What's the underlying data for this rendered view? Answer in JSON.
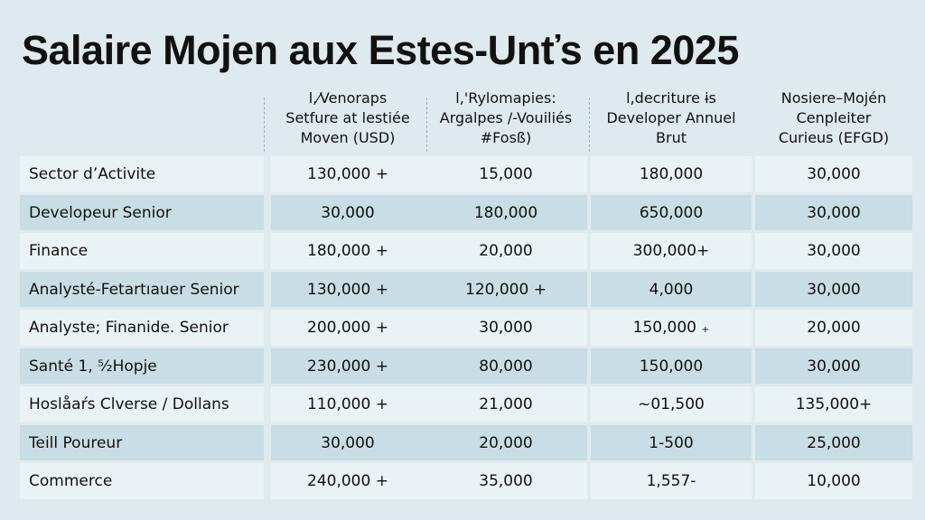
{
  "header": {
    "title": "Salaire Mojen aux Estes-Unťs en 2025"
  },
  "table": {
    "columns": [
      [
        "l,⁄Venoraps",
        "Setfure at lestiée",
        "Moven (USD)"
      ],
      [
        "l,'Rylomapies:",
        "Argalpes /-Vouiliés",
        "#Fosß)"
      ],
      [
        "l,decriture ɨs",
        "Developer Annuel",
        "Brut"
      ],
      [
        "Nosiere–Mojén",
        "Cenpleiter",
        "Curieus (EFGD)"
      ]
    ],
    "rows": [
      [
        "Sector d’Activite",
        "130,000 +",
        "15,000",
        "180,000",
        "30,000"
      ],
      [
        "Developeur Senior",
        "30,000",
        "180,000",
        "650,000",
        "30,000"
      ],
      [
        "Finance",
        "180,000 +",
        "20,000",
        "300,000+",
        "30,000"
      ],
      [
        "Analysté-Fetartıauer Senior",
        "130,000 +",
        "120,000 +",
        "4,000",
        "30,000"
      ],
      [
        "Analyste; Finanide. Senior",
        "200,000 +",
        "30,000",
        "150,000 ₊",
        "20,000"
      ],
      [
        "Santé 1, ⁵⁄₂Hopje",
        "230,000 +",
        "80,000",
        "150,000",
        "30,000"
      ],
      [
        "Hoslåaŕs Clverse / Dollans",
        "110,000 +",
        "21,000",
        "~01,500",
        "135,000+"
      ],
      [
        "Teill Poureur",
        "30,000",
        "20,000",
        "1-500",
        "25,000"
      ],
      [
        "Commerce",
        "240,000 +",
        "35,000",
        "1,557-",
        "10,000"
      ]
    ]
  }
}
